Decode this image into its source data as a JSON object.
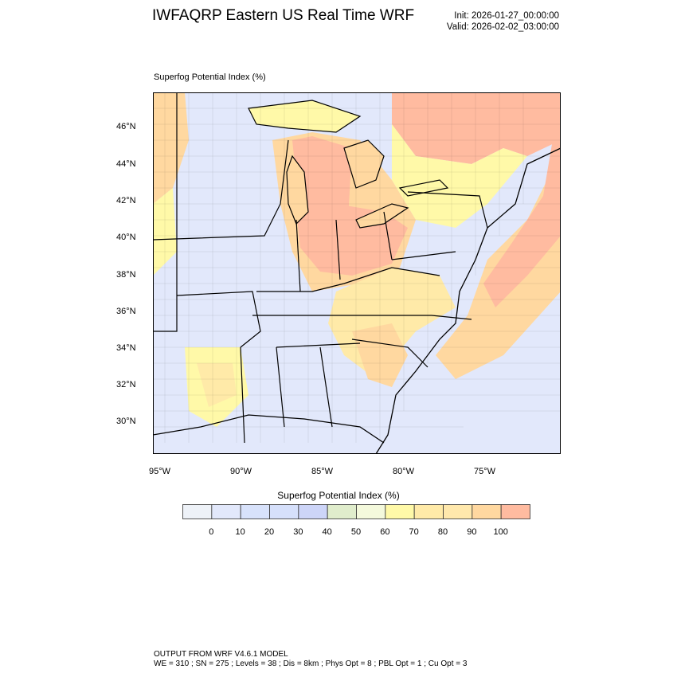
{
  "header": {
    "title": "IWFAQRP Eastern US Real Time WRF",
    "init": "Init: 2026-01-27_00:00:00",
    "valid": "Valid: 2026-02-02_03:00:00"
  },
  "map": {
    "field_label": "Superfog Potential Index   (%)",
    "lat_labels": [
      "46°N",
      "44°N",
      "42°N",
      "40°N",
      "38°N",
      "36°N",
      "34°N",
      "32°N",
      "30°N"
    ],
    "lon_labels": [
      "95°W",
      "90°W",
      "85°W",
      "80°W",
      "75°W"
    ],
    "background_color": "#e2e8fb",
    "high_color": "#ffbba0"
  },
  "colorbar": {
    "title": "Superfog Potential Index  (%)",
    "labels": [
      "0",
      "10",
      "20",
      "30",
      "40",
      "50",
      "60",
      "70",
      "80",
      "90",
      "100"
    ],
    "colors": [
      "#eef2f8",
      "#e2e8fb",
      "#d8e2fb",
      "#d6e0fb",
      "#cdd5f8",
      "#e0edcc",
      "#f4f9dc",
      "#fff9a8",
      "#ffeaa8",
      "#ffe8ac",
      "#ffd8a0",
      "#ffbba0"
    ]
  },
  "footer": {
    "line1": "OUTPUT FROM WRF V4.6.1 MODEL",
    "line2": "WE = 310 ; SN = 275 ; Levels = 38 ; Dis = 8km ; Phys Opt = 8 ; PBL Opt = 1 ; Cu Opt = 3"
  }
}
